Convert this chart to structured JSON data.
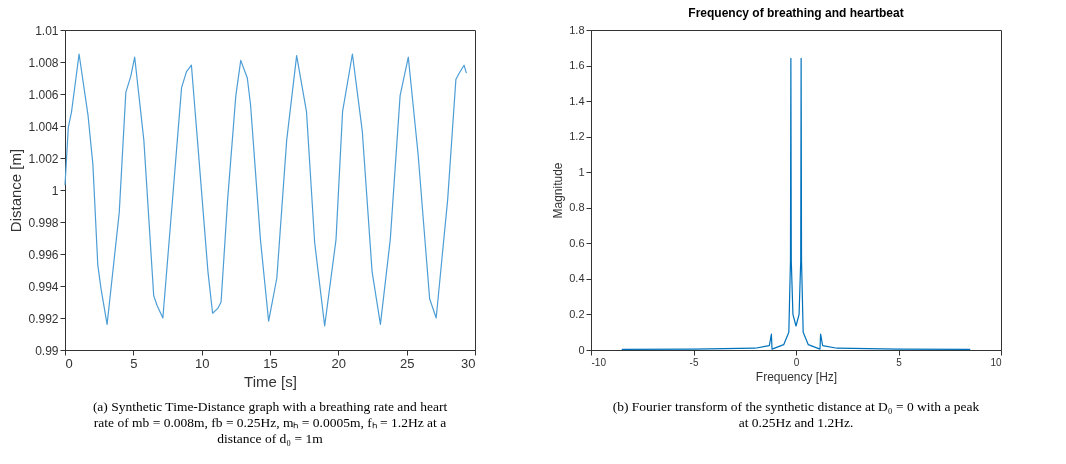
{
  "chart_data": [
    {
      "type": "line",
      "xlabel": "Time [s]",
      "ylabel": "Distance [m]",
      "xlim": [
        0,
        30
      ],
      "ylim": [
        0.99,
        1.01
      ],
      "xticks": [
        0,
        5,
        10,
        15,
        20,
        25,
        30
      ],
      "yticks": [
        0.99,
        0.992,
        0.994,
        0.996,
        0.998,
        1,
        1.002,
        1.004,
        1.006,
        1.008,
        1.01
      ],
      "grid": false,
      "x": [
        0,
        0.24,
        0.48,
        1.03,
        1.68,
        2.04,
        2.4,
        2.64,
        3.08,
        3.97,
        4.45,
        4.81,
        5.1,
        5.77,
        6.49,
        6.73,
        7.16,
        7.81,
        8.53,
        8.89,
        9.25,
        9.74,
        10.46,
        10.8,
        11.18,
        11.42,
        11.9,
        12.5,
        12.86,
        13.34,
        13.58,
        14.3,
        14.9,
        15.5,
        16.22,
        16.95,
        17.67,
        18.27,
        19.0,
        19.83,
        20.31,
        21.03,
        21.75,
        22.47,
        23.08,
        23.8,
        24.52,
        25.12,
        25.84,
        26.68,
        27.16,
        28.0,
        28.6,
        28.84,
        29.2,
        29.37
      ],
      "series": [
        {
          "color": "#4d9ed6",
          "values": [
            1.0003,
            1.0039,
            1.0049,
            1.0085,
            1.0047,
            1.0016,
            0.9953,
            0.9938,
            0.9916,
            0.9986,
            1.0061,
            1.0071,
            1.0083,
            1.0031,
            0.9934,
            0.9928,
            0.992,
            0.9988,
            1.0064,
            1.0074,
            1.0078,
            1.0026,
            0.9949,
            0.9923,
            0.9926,
            0.993,
            0.9994,
            1.0059,
            1.0081,
            1.007,
            1.0053,
            0.9969,
            0.9918,
            0.9945,
            1.0031,
            1.0084,
            1.0049,
            0.9967,
            0.9915,
            0.9969,
            1.0049,
            1.0085,
            1.0037,
            0.9949,
            0.9916,
            0.9969,
            1.0059,
            1.0083,
            1.0022,
            0.9932,
            0.992,
            0.9994,
            1.0069,
            1.0073,
            1.0078,
            1.0073
          ]
        }
      ],
      "annotations": [
        "(a) Synthetic Time-Distance graph with a breathing rate and heart rate of mb = 0.008m, fb = 0.25Hz, mₕ = 0.0005m, fₕ = 1.2Hz at a distance of d₀ = 1m"
      ]
    },
    {
      "type": "line",
      "title": "Frequency of breathing and heartbeat",
      "xlabel": "Frequency [Hz]",
      "ylabel": "Magnitude",
      "xlim": [
        -10,
        10
      ],
      "ylim": [
        0,
        1.8
      ],
      "xticks": [
        -10,
        -5,
        0,
        5,
        10
      ],
      "yticks": [
        0,
        0.2,
        0.4,
        0.6,
        0.8,
        1,
        1.2,
        1.4,
        1.6,
        1.8
      ],
      "grid": false,
      "x": [
        -8.5,
        -5,
        -2,
        -1.3,
        -1.2,
        -1.17,
        -0.6,
        -0.35,
        -0.27,
        -0.25,
        -0.23,
        -0.15,
        0,
        0.15,
        0.23,
        0.25,
        0.27,
        0.35,
        0.6,
        1.17,
        1.2,
        1.3,
        2,
        5,
        8.5
      ],
      "series": [
        {
          "color": "#0072bd",
          "values": [
            0.003,
            0.005,
            0.01,
            0.025,
            0.09,
            0.005,
            0.03,
            0.1,
            0.5,
            1.64,
            0.5,
            0.2,
            0.135,
            0.2,
            0.5,
            1.64,
            0.5,
            0.1,
            0.03,
            0.005,
            0.09,
            0.025,
            0.01,
            0.005,
            0.003
          ]
        }
      ],
      "annotations": [
        "(b) Fourier transform of the synthetic distance at D₀ = 0 with a peak at 0.25Hz and 1.2Hz."
      ]
    }
  ]
}
